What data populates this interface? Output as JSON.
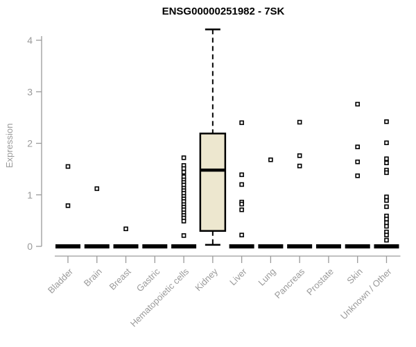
{
  "title": "ENSG00000251982 - 7SK",
  "chart_data": {
    "type": "box",
    "title": "ENSG00000251982 - 7SK",
    "xlabel": "",
    "ylabel": "Expression",
    "ylim": [
      0,
      4
    ],
    "yticks": [
      0,
      1,
      2,
      3,
      4
    ],
    "grid": false,
    "legend": "none",
    "marker": "open-square",
    "categories": [
      "Bladder",
      "Brain",
      "Breast",
      "Gastric",
      "Hematopoietic cells",
      "Kidney",
      "Liver",
      "Lung",
      "Pancreas",
      "Prostate",
      "Skin",
      "Unknown / Other"
    ],
    "boxes": [
      {
        "category": "Bladder",
        "low": 0,
        "q1": 0,
        "median": 0,
        "q3": 0,
        "high": 0,
        "outliers": [
          1.55,
          0.79
        ]
      },
      {
        "category": "Brain",
        "low": 0,
        "q1": 0,
        "median": 0,
        "q3": 0,
        "high": 0,
        "outliers": [
          1.12
        ]
      },
      {
        "category": "Breast",
        "low": 0,
        "q1": 0,
        "median": 0,
        "q3": 0,
        "high": 0,
        "outliers": [
          0.34
        ]
      },
      {
        "category": "Gastric",
        "low": 0,
        "q1": 0,
        "median": 0,
        "q3": 0,
        "high": 0,
        "outliers": []
      },
      {
        "category": "Hematopoietic cells",
        "low": 0,
        "q1": 0,
        "median": 0,
        "q3": 0,
        "high": 0,
        "outliers": [
          1.72,
          1.57,
          1.51,
          1.44,
          1.35,
          1.29,
          1.24,
          1.19,
          1.13,
          1.08,
          1.03,
          0.97,
          0.92,
          0.87,
          0.81,
          0.76,
          0.71,
          0.65,
          0.6,
          0.55,
          0.49,
          0.21
        ]
      },
      {
        "category": "Kidney",
        "low": 0.03,
        "q1": 0.3,
        "median": 1.48,
        "q3": 2.19,
        "high": 4.21,
        "outliers": []
      },
      {
        "category": "Liver",
        "low": 0,
        "q1": 0,
        "median": 0,
        "q3": 0,
        "high": 0,
        "outliers": [
          2.4,
          1.39,
          1.2,
          0.86,
          0.82,
          0.71,
          0.22
        ]
      },
      {
        "category": "Lung",
        "low": 0,
        "q1": 0,
        "median": 0,
        "q3": 0,
        "high": 0,
        "outliers": [
          1.68
        ]
      },
      {
        "category": "Pancreas",
        "low": 0,
        "q1": 0,
        "median": 0,
        "q3": 0,
        "high": 0,
        "outliers": [
          2.41,
          1.76,
          1.56
        ]
      },
      {
        "category": "Prostate",
        "low": 0,
        "q1": 0,
        "median": 0,
        "q3": 0,
        "high": 0,
        "outliers": []
      },
      {
        "category": "Skin",
        "low": 0,
        "q1": 0,
        "median": 0,
        "q3": 0,
        "high": 0,
        "outliers": [
          2.76,
          1.93,
          1.64,
          1.37
        ]
      },
      {
        "category": "Unknown / Other",
        "low": 0,
        "q1": 0,
        "median": 0,
        "q3": 0,
        "high": 0,
        "outliers": [
          2.42,
          2.01,
          1.7,
          1.62,
          1.48,
          1.43,
          0.96,
          0.89,
          0.77,
          0.59,
          0.53,
          0.46,
          0.39,
          0.28,
          0.22,
          0.12
        ]
      }
    ],
    "colors": {
      "box_fill": "#EDE7CF",
      "box_stroke": "#000000",
      "median": "#000000",
      "whisker": "#000000",
      "outlier_fill": "#ffffff",
      "outlier_stroke": "#000000",
      "axis": "#9a9a9a",
      "tick_label": "#9a9a9a",
      "title": "#000000",
      "background": "#ffffff"
    }
  }
}
